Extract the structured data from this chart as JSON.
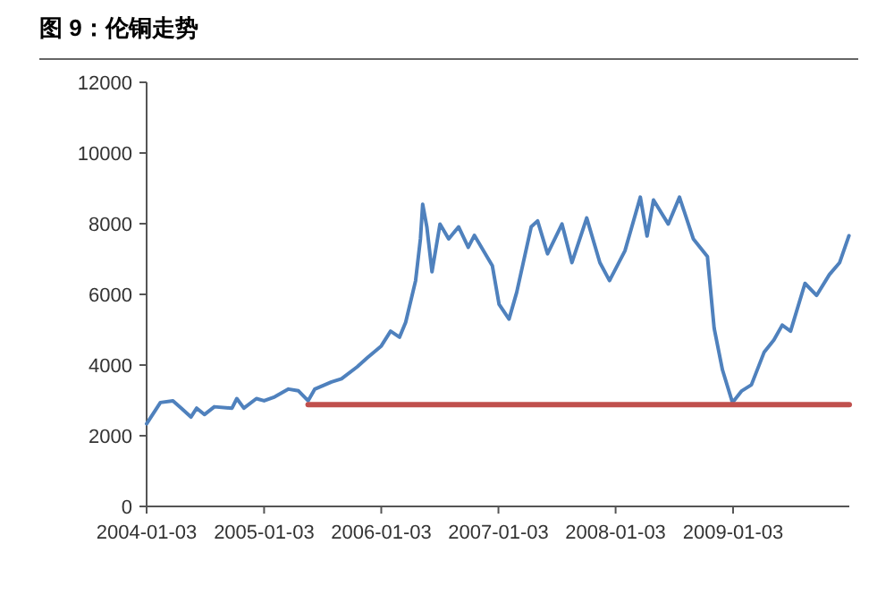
{
  "chart_data": {
    "type": "line",
    "title": "图 9：伦铜走势",
    "xlim": [
      "2004-01-03",
      "2009-12-31"
    ],
    "xticks": [
      "2004-01-03",
      "2005-01-03",
      "2006-01-03",
      "2007-01-03",
      "2008-01-03",
      "2009-01-03"
    ],
    "ylim": [
      0,
      12000
    ],
    "yticks": [
      0,
      2000,
      4000,
      6000,
      8000,
      10000,
      12000
    ],
    "grid": false,
    "series": [
      {
        "color": "#4f81bd",
        "x": [
          "2004-01-03",
          "2004-02-15",
          "2004-03-25",
          "2004-04-20",
          "2004-05-20",
          "2004-06-07",
          "2004-07-01",
          "2004-08-01",
          "2004-09-25",
          "2004-10-10",
          "2004-11-01",
          "2004-12-10",
          "2005-01-03",
          "2005-02-05",
          "2005-03-20",
          "2005-04-20",
          "2005-05-20",
          "2005-06-10",
          "2005-08-01",
          "2005-09-01",
          "2005-10-20",
          "2005-11-20",
          "2006-01-03",
          "2006-02-01",
          "2006-03-01",
          "2006-03-20",
          "2006-04-20",
          "2006-05-05",
          "2006-05-12",
          "2006-05-25",
          "2006-06-10",
          "2006-07-05",
          "2006-08-01",
          "2006-09-01",
          "2006-10-01",
          "2006-10-20",
          "2006-12-15",
          "2007-01-05",
          "2007-02-05",
          "2007-03-01",
          "2007-04-15",
          "2007-05-05",
          "2007-06-05",
          "2007-07-20",
          "2007-08-20",
          "2007-10-05",
          "2007-11-15",
          "2007-12-15",
          "2008-02-01",
          "2008-03-20",
          "2008-04-10",
          "2008-04-30",
          "2008-06-15",
          "2008-07-20",
          "2008-09-01",
          "2008-10-15",
          "2008-11-05",
          "2008-12-01",
          "2009-01-01",
          "2009-01-30",
          "2009-03-01",
          "2009-04-10",
          "2009-05-10",
          "2009-06-05",
          "2009-07-01",
          "2009-08-15",
          "2009-09-20",
          "2009-10-30",
          "2009-12-01",
          "2009-12-30"
        ],
        "values": [
          2340,
          2940,
          2990,
          2780,
          2530,
          2780,
          2600,
          2820,
          2780,
          3050,
          2780,
          3050,
          2990,
          3100,
          3320,
          3270,
          2990,
          3320,
          3520,
          3610,
          3950,
          4200,
          4540,
          4960,
          4790,
          5210,
          6390,
          7570,
          8550,
          7910,
          6640,
          7990,
          7570,
          7910,
          7330,
          7670,
          6810,
          5720,
          5300,
          6060,
          7910,
          8080,
          7150,
          7990,
          6900,
          8160,
          6900,
          6390,
          7230,
          8750,
          7650,
          8670,
          7990,
          8750,
          7570,
          7070,
          5040,
          3860,
          2940,
          3270,
          3440,
          4370,
          4710,
          5130,
          4960,
          6310,
          5970,
          6560,
          6900,
          7660
        ]
      },
      {
        "color": "#c0504d",
        "x": [
          "2005-05-20",
          "2009-12-31"
        ],
        "values": [
          2880,
          2880
        ]
      }
    ]
  }
}
